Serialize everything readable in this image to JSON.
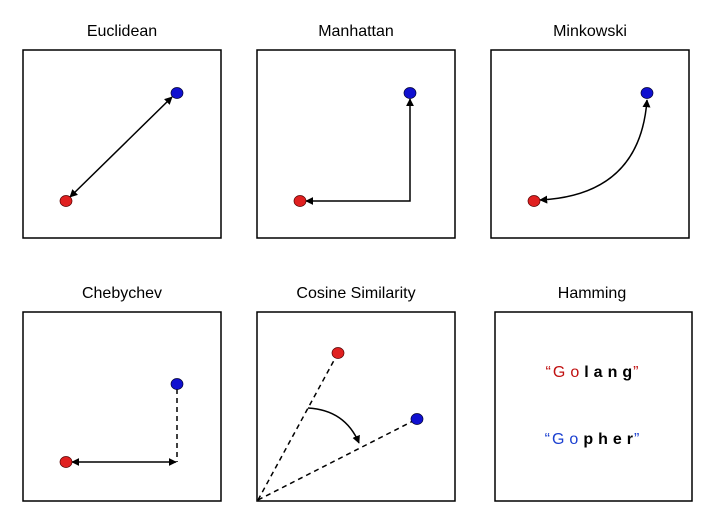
{
  "panels": {
    "euclidean": {
      "title": "Euclidean"
    },
    "manhattan": {
      "title": "Manhattan"
    },
    "minkowski": {
      "title": "Minkowski"
    },
    "chebychev": {
      "title": "Chebychev"
    },
    "cosine": {
      "title": "Cosine Similarity"
    },
    "hamming": {
      "title": "Hamming"
    }
  },
  "hamming_words": {
    "word1": {
      "open_quote": "“",
      "chars": [
        "G",
        "o",
        "l",
        "a",
        "n",
        "g"
      ],
      "close_quote": "”"
    },
    "word2": {
      "open_quote": "“",
      "chars": [
        "G",
        "o",
        "p",
        "h",
        "e",
        "r"
      ],
      "close_quote": "”"
    }
  },
  "colors": {
    "red_point": "#e02020",
    "blue_point": "#1010d0",
    "word1_match": "#c01010",
    "word2_match": "#1a3fd0",
    "mismatch": "#000000"
  }
}
